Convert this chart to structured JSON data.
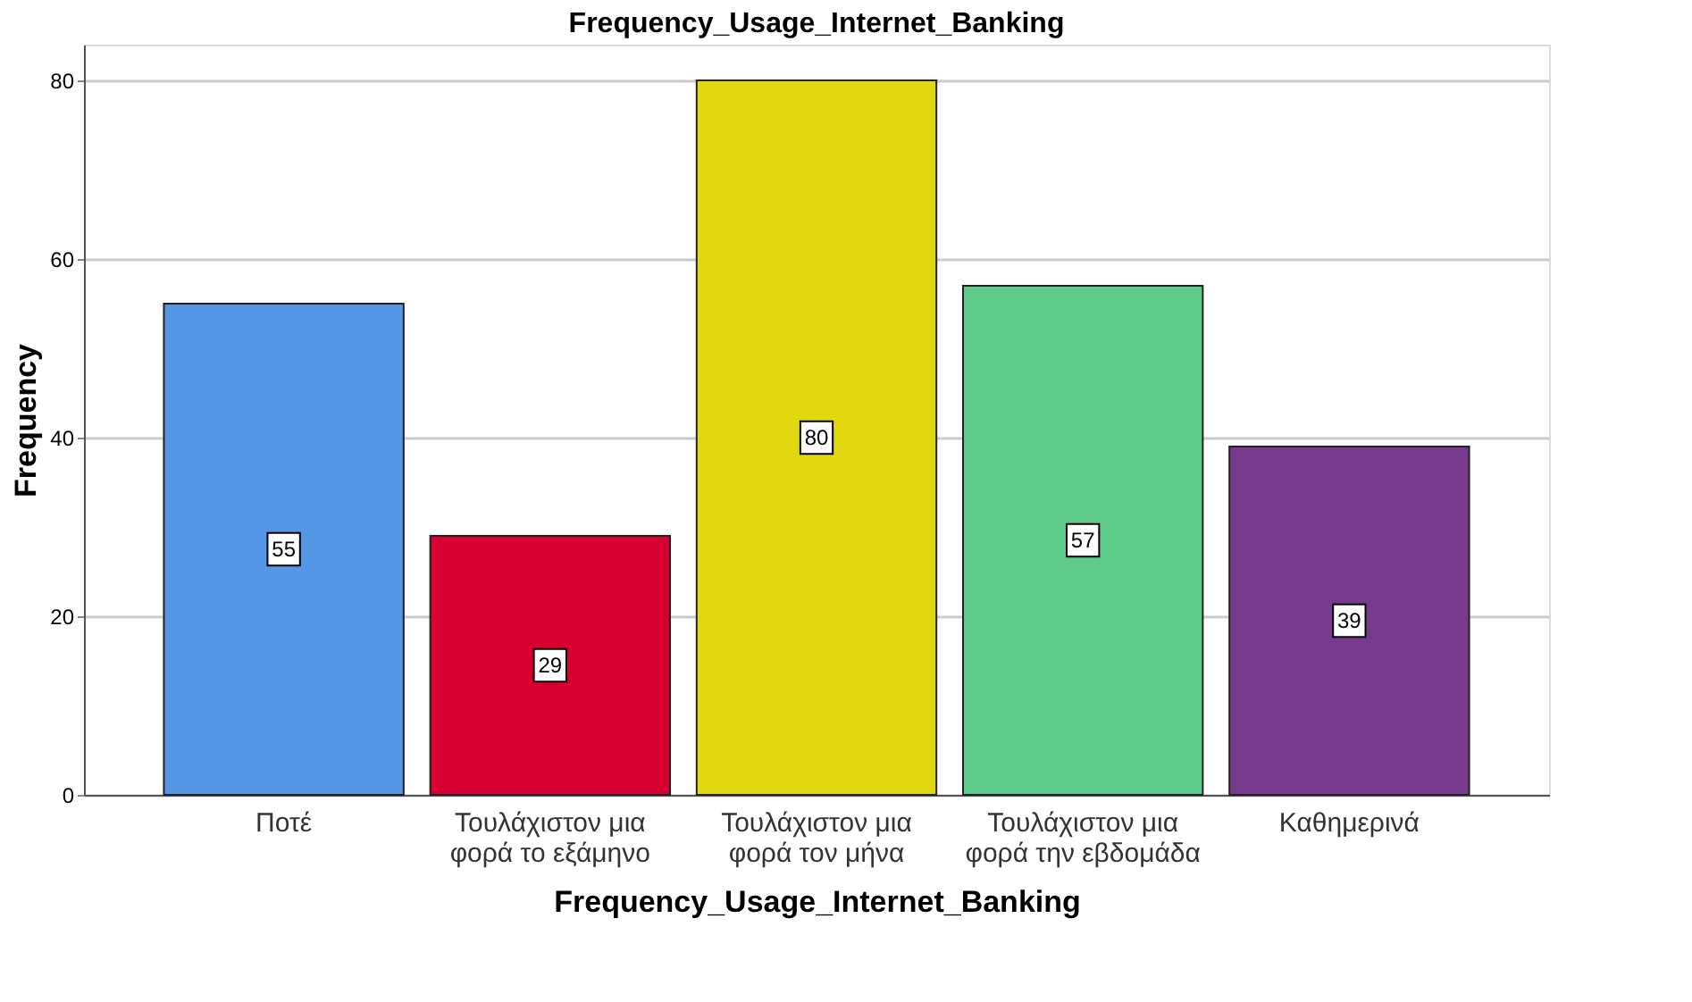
{
  "chart_data": {
    "type": "bar",
    "title": "Frequency_Usage_Internet_Banking",
    "xlabel": "Frequency_Usage_Internet_Banking",
    "ylabel": "Frequency",
    "categories": [
      "Ποτέ",
      "Τουλάχιστον μια φορά το εξάμηνο",
      "Τουλάχιστον μια φορά τον μήνα",
      "Τουλάχιστον μια φορά την εβδομάδα",
      "Καθημερινά"
    ],
    "values": [
      55,
      29,
      80,
      57,
      39
    ],
    "colors": [
      "#5596e6",
      "#d70030",
      "#e2d80f",
      "#5ecb8a",
      "#773a8c"
    ],
    "ylim": [
      0,
      84
    ],
    "yticks": [
      0,
      20,
      40,
      60,
      80
    ],
    "grid": "y",
    "data_labels": true
  }
}
